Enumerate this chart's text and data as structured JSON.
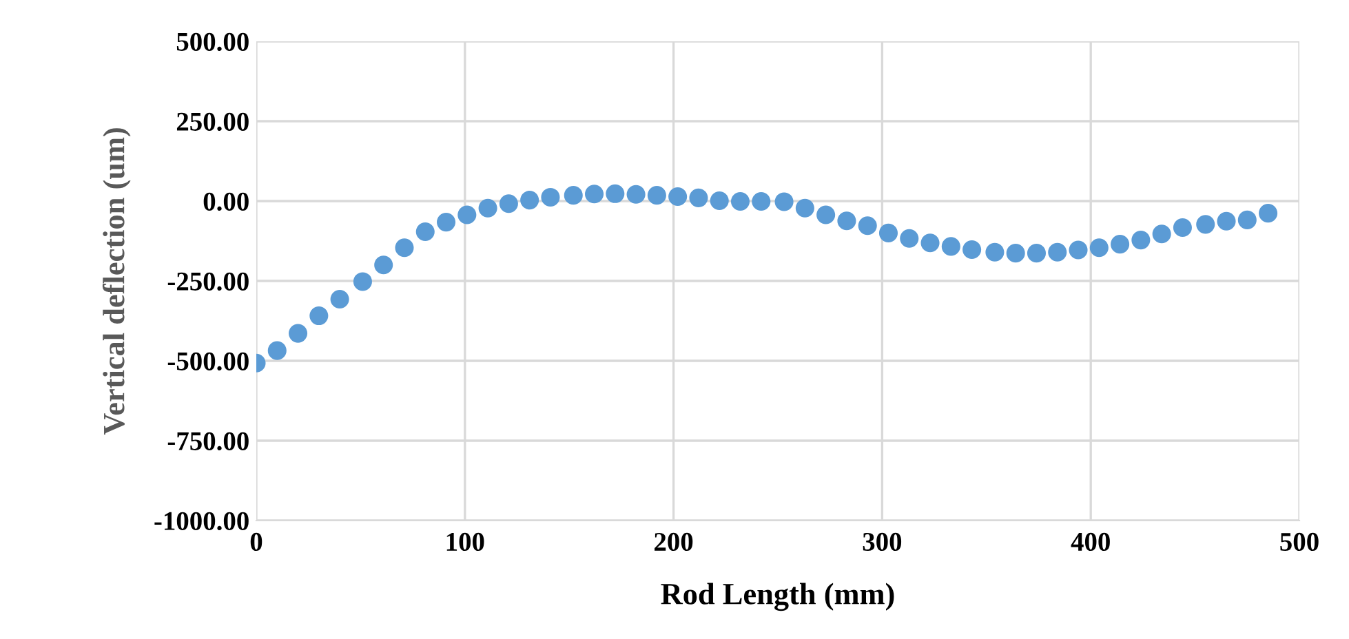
{
  "chart_data": {
    "type": "scatter",
    "xlabel": "Rod Length (mm)",
    "ylabel": "Vertical deflection (um)",
    "x": [
      0,
      10,
      20,
      30,
      40,
      51,
      61,
      71,
      81,
      91,
      101,
      111,
      121,
      131,
      141,
      152,
      162,
      172,
      182,
      192,
      202,
      212,
      222,
      232,
      242,
      253,
      263,
      273,
      283,
      293,
      303,
      313,
      323,
      333,
      343,
      354,
      364,
      374,
      384,
      394,
      404,
      414,
      424,
      434,
      444,
      455,
      465,
      475,
      485
    ],
    "series": [
      {
        "color": "#5b9bd5",
        "values": [
          -507,
          -468,
          -414,
          -359,
          -307,
          -252,
          -200,
          -146,
          -96,
          -66,
          -43,
          -22,
          -8,
          3,
          12,
          18,
          22,
          23,
          21,
          18,
          14,
          10,
          1,
          -1,
          -1,
          -2,
          -22,
          -43,
          -62,
          -77,
          -100,
          -117,
          -131,
          -142,
          -152,
          -160,
          -163,
          -163,
          -160,
          -153,
          -146,
          -135,
          -122,
          -103,
          -83,
          -73,
          -63,
          -59,
          -38
        ]
      }
    ],
    "xlim": [
      0,
      500
    ],
    "xticks": [
      0,
      100,
      200,
      300,
      400,
      500
    ],
    "ylim": [
      -1000,
      500
    ],
    "yticks": [
      {
        "value": -1000,
        "label": "-1000.00"
      },
      {
        "value": -750,
        "label": "-750.00"
      },
      {
        "value": -500,
        "label": "-500.00"
      },
      {
        "value": -250,
        "label": "-250.00"
      },
      {
        "value": 0,
        "label": "0.00"
      },
      {
        "value": 250,
        "label": "250.00"
      },
      {
        "value": 500,
        "label": "500.00"
      }
    ],
    "grid": true,
    "marker": "circle",
    "legend": false
  }
}
